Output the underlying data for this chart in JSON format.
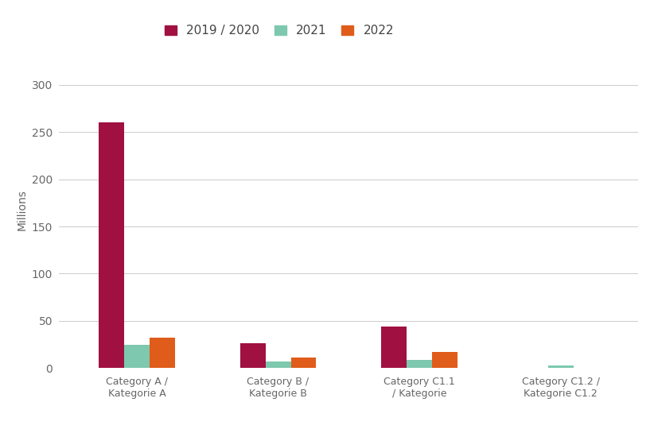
{
  "categories": [
    "Category A /\nKategorie A",
    "Category B /\nKategorie B",
    "Category C1.1\n/ Kategorie",
    "Category C1.2 /\nKategorie C1.2"
  ],
  "series": {
    "2019 / 2020": [
      260,
      26,
      44,
      0
    ],
    "2021": [
      25,
      7,
      9,
      3
    ],
    "2022": [
      32,
      11,
      17,
      0
    ]
  },
  "colors": {
    "2019 / 2020": "#A01040",
    "2021": "#7DC8AE",
    "2022": "#E05C1A"
  },
  "ylabel": "Millions",
  "ylim": [
    0,
    335
  ],
  "yticks": [
    0,
    50,
    100,
    150,
    200,
    250,
    300
  ],
  "background_color": "#ffffff",
  "grid_color": "#cccccc",
  "bar_width": 0.18,
  "legend_order": [
    "2019 / 2020",
    "2021",
    "2022"
  ],
  "legend_fontsize": 11,
  "label_fontsize": 9,
  "tick_fontsize": 10,
  "ylabel_fontsize": 10
}
